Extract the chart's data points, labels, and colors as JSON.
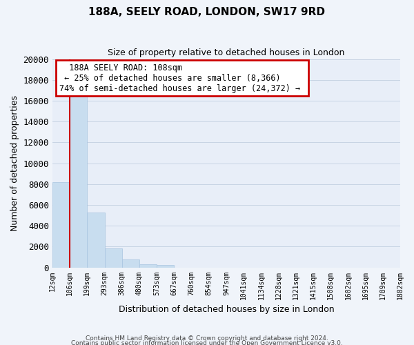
{
  "title": "188A, SEELY ROAD, LONDON, SW17 9RD",
  "subtitle": "Size of property relative to detached houses in London",
  "xlabel": "Distribution of detached houses by size in London",
  "ylabel": "Number of detached properties",
  "bar_color": "#c8ddef",
  "bar_edge_color": "#a8c4e0",
  "grid_color": "#c8d4e4",
  "background_color": "#e8eef8",
  "bin_labels": [
    "12sqm",
    "106sqm",
    "199sqm",
    "293sqm",
    "386sqm",
    "480sqm",
    "573sqm",
    "667sqm",
    "760sqm",
    "854sqm",
    "947sqm",
    "1041sqm",
    "1134sqm",
    "1228sqm",
    "1321sqm",
    "1415sqm",
    "1508sqm",
    "1602sqm",
    "1695sqm",
    "1789sqm",
    "1882sqm"
  ],
  "bar_heights": [
    8200,
    16600,
    5300,
    1800,
    750,
    300,
    250,
    0,
    0,
    0,
    0,
    0,
    0,
    0,
    0,
    0,
    0,
    0,
    0,
    0
  ],
  "ylim": [
    0,
    20000
  ],
  "yticks": [
    0,
    2000,
    4000,
    6000,
    8000,
    10000,
    12000,
    14000,
    16000,
    18000,
    20000
  ],
  "annotation_title": "188A SEELY ROAD: 108sqm",
  "annotation_line1": "← 25% of detached houses are smaller (8,366)",
  "annotation_line2": "74% of semi-detached houses are larger (24,372) →",
  "annotation_box_color": "#ffffff",
  "annotation_border_color": "#cc0000",
  "red_line_color": "#cc0000",
  "footer_line1": "Contains HM Land Registry data © Crown copyright and database right 2024.",
  "footer_line2": "Contains public sector information licensed under the Open Government Licence v3.0."
}
